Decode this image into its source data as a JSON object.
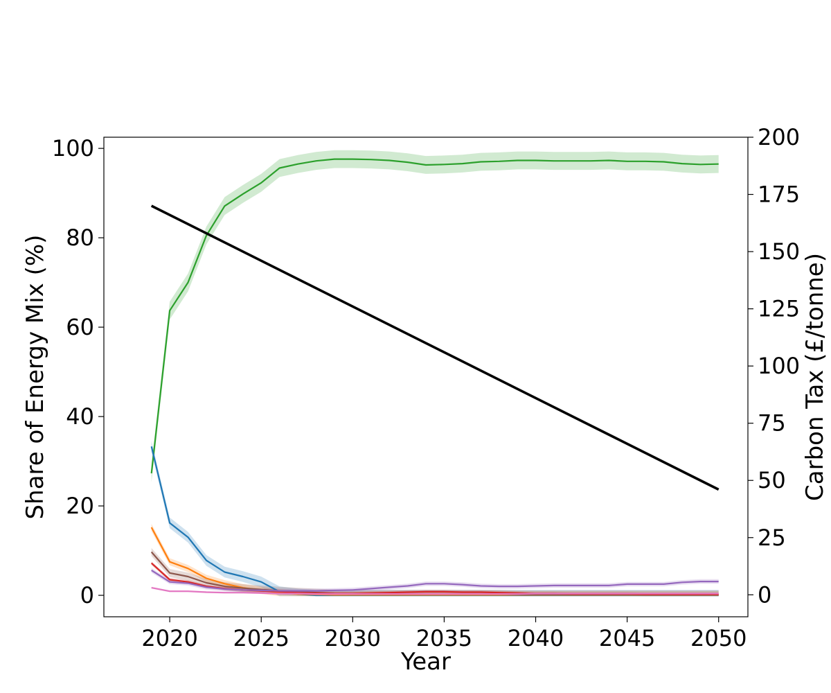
{
  "chart_data": {
    "type": "line",
    "title": "",
    "xlabel": "Year",
    "ylabel": "Share of Energy Mix (%)",
    "y2label": "Carbon Tax (£/tonne)",
    "xlim": [
      2016.4,
      2051.6
    ],
    "ylim": [
      -4.8,
      102.5
    ],
    "y2lim": [
      -9.6,
      200
    ],
    "xticks": [
      2020,
      2025,
      2030,
      2035,
      2040,
      2045,
      2050
    ],
    "yticks": [
      0,
      20,
      40,
      60,
      80,
      100
    ],
    "y2ticks": [
      0,
      25,
      50,
      75,
      100,
      125,
      150,
      175,
      200
    ],
    "grid": false,
    "legend": "none",
    "x": [
      2019,
      2020,
      2021,
      2022,
      2023,
      2024,
      2025,
      2026,
      2027,
      2028,
      2029,
      2030,
      2031,
      2032,
      2033,
      2034,
      2035,
      2036,
      2037,
      2038,
      2039,
      2040,
      2041,
      2042,
      2043,
      2044,
      2045,
      2046,
      2047,
      2048,
      2049,
      2050
    ],
    "series": [
      {
        "color": "#2ca02c",
        "values": [
          27.3,
          63.7,
          70.0,
          80.5,
          87.1,
          89.8,
          92.3,
          95.6,
          96.5,
          97.2,
          97.6,
          97.6,
          97.5,
          97.3,
          96.9,
          96.3,
          96.4,
          96.6,
          97.0,
          97.1,
          97.3,
          97.3,
          97.2,
          97.2,
          97.2,
          97.3,
          97.1,
          97.1,
          97.0,
          96.6,
          96.4,
          96.5
        ],
        "band": 2.0
      },
      {
        "color": "#1f77b4",
        "values": [
          33.3,
          16.2,
          13.0,
          7.8,
          5.2,
          4.2,
          3.0,
          0.8,
          0.3,
          0.0,
          0.0,
          0.0,
          0.0,
          0.0,
          0.0,
          0.0,
          0.0,
          0.0,
          0.0,
          0.0,
          0.0,
          0.0,
          0.0,
          0.0,
          0.0,
          0.0,
          0.0,
          0.0,
          0.0,
          0.0,
          0.0,
          0.0
        ],
        "band": 1.2
      },
      {
        "color": "#ff7f0e",
        "values": [
          15.2,
          7.5,
          6.0,
          3.8,
          2.6,
          1.7,
          1.1,
          0.6,
          0.3,
          0.2,
          0.1,
          0.1,
          0.1,
          0.1,
          0.1,
          0.1,
          0.1,
          0.1,
          0.1,
          0.1,
          0.1,
          0.1,
          0.1,
          0.1,
          0.1,
          0.1,
          0.1,
          0.1,
          0.1,
          0.1,
          0.1,
          0.1
        ],
        "band": 0.8
      },
      {
        "color": "#8c564b",
        "values": [
          9.7,
          5.0,
          4.2,
          2.8,
          2.0,
          1.6,
          1.3,
          1.0,
          0.8,
          0.6,
          0.4,
          0.3,
          0.3,
          0.3,
          0.3,
          0.3,
          0.3,
          0.3,
          0.3,
          0.3,
          0.2,
          0.2,
          0.2,
          0.2,
          0.2,
          0.2,
          0.2,
          0.2,
          0.2,
          0.2,
          0.2,
          0.2
        ],
        "band": 0.9
      },
      {
        "color": "#d62728",
        "values": [
          7.2,
          3.5,
          3.0,
          2.0,
          1.5,
          1.2,
          1.0,
          0.8,
          0.6,
          0.5,
          0.4,
          0.4,
          0.5,
          0.6,
          0.7,
          0.8,
          0.8,
          0.7,
          0.7,
          0.6,
          0.5,
          0.4,
          0.4,
          0.3,
          0.3,
          0.3,
          0.3,
          0.2,
          0.2,
          0.2,
          0.2,
          0.2
        ],
        "band": 0.4
      },
      {
        "color": "#9467bd",
        "values": [
          5.6,
          3.0,
          2.7,
          1.8,
          1.4,
          1.2,
          1.1,
          1.0,
          1.0,
          1.0,
          1.1,
          1.2,
          1.5,
          1.8,
          2.1,
          2.6,
          2.6,
          2.4,
          2.1,
          2.0,
          2.0,
          2.1,
          2.2,
          2.2,
          2.2,
          2.2,
          2.5,
          2.5,
          2.5,
          2.9,
          3.1,
          3.1
        ],
        "band": 0.5
      },
      {
        "color": "#e377c2",
        "values": [
          1.7,
          0.9,
          0.9,
          0.7,
          0.6,
          0.6,
          0.5,
          0.4,
          0.4,
          0.3,
          0.3,
          0.3,
          0.3,
          0.3,
          0.3,
          0.3,
          0.3,
          0.3,
          0.3,
          0.3,
          0.3,
          0.4,
          0.4,
          0.4,
          0.4,
          0.4,
          0.4,
          0.4,
          0.4,
          0.4,
          0.4,
          0.4
        ],
        "band": 0.2
      }
    ],
    "secondary_series": {
      "axis": "y2",
      "color": "#000000",
      "x": [
        2019,
        2050
      ],
      "values": [
        170,
        46
      ]
    }
  }
}
